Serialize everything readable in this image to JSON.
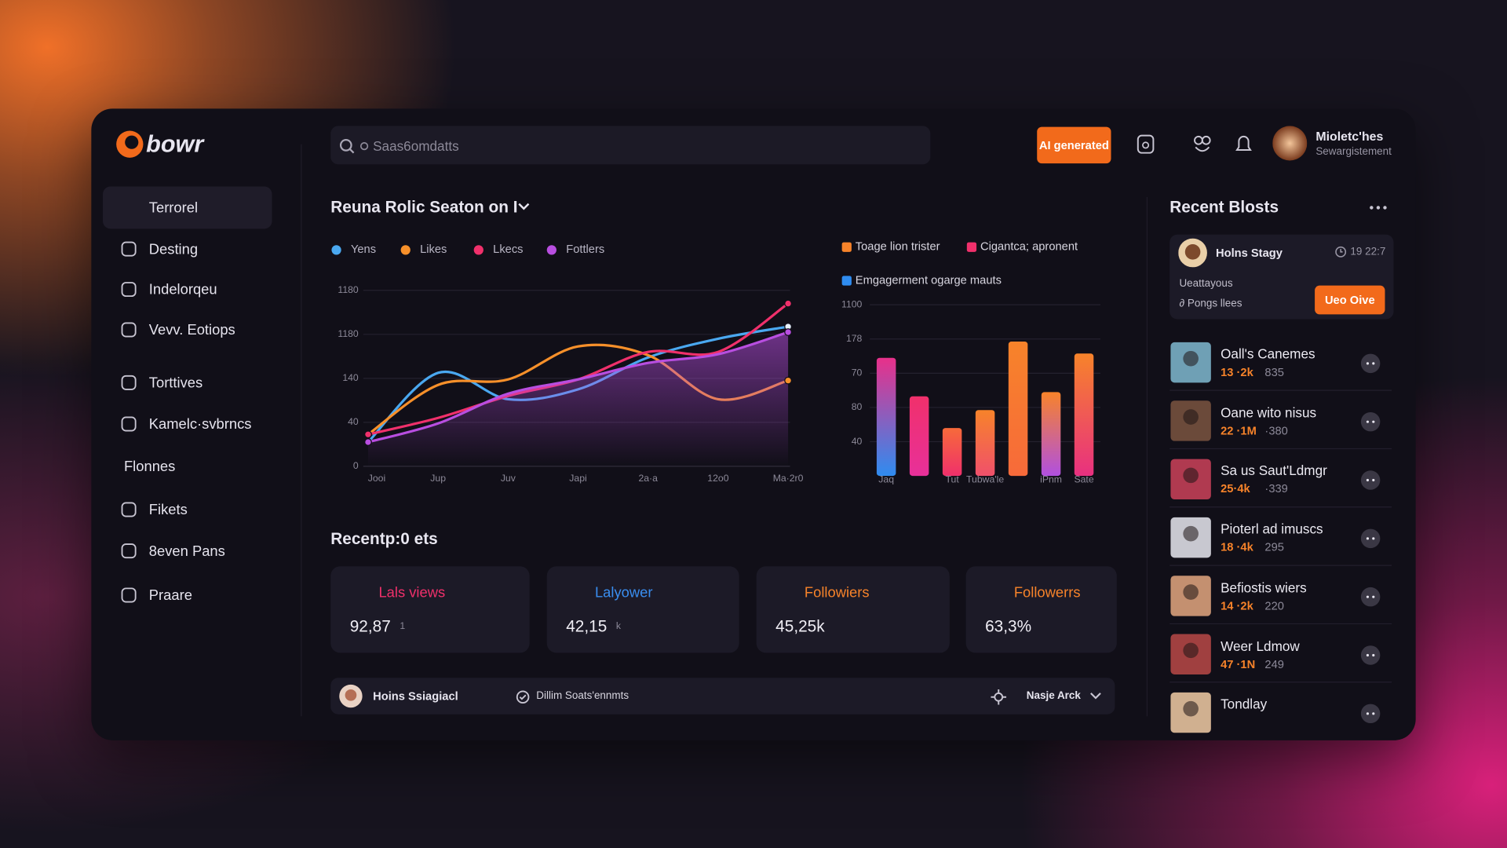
{
  "brand": "bowr",
  "search_placeholder": "Saas6omdatts",
  "ai_button": "AI generated",
  "user": {
    "name": "Mioletc'hes",
    "subtitle": "Sewargistement"
  },
  "nav": [
    "Terrorel",
    "Desting",
    "Indelorqeu",
    "Vevv. Eotiops",
    "Torttives",
    "Kamelc·svbrncs",
    "Flonnes",
    "Fikets",
    "8even Pans",
    "Praare"
  ],
  "chart_data": [
    {
      "type": "line",
      "title": "Reuna Rolic Seaton on I",
      "categories": [
        "Jooi",
        "Jup",
        "Juv",
        "Japi",
        "2a·a",
        "12o0",
        "Ma·2r0"
      ],
      "series": [
        {
          "name": "Yens",
          "color": "#4aa8f0",
          "values": [
            22,
            85,
            61,
            70,
            99,
            116,
            127
          ]
        },
        {
          "name": "Likes",
          "color": "#f7902a",
          "values": [
            29,
            74,
            79,
            109,
            101,
            61,
            78
          ]
        },
        {
          "name": "Lkecs",
          "color": "#f0306b",
          "values": [
            29,
            44,
            64,
            79,
            104,
            104,
            148
          ]
        },
        {
          "name": "Fottlers",
          "color": "#b84ee0",
          "values": [
            22,
            39,
            66,
            79,
            94,
            102,
            122
          ],
          "fill_area": true
        }
      ],
      "ylim": [
        0,
        160
      ],
      "yticks": [
        0,
        40,
        {
          "value": 80,
          "label": "140"
        },
        {
          "value": 120,
          "label": "1180"
        },
        {
          "value": 160,
          "label": "1180"
        }
      ],
      "grid": true
    },
    {
      "type": "bar",
      "legend": [
        {
          "name": "Toage lion trister",
          "color": "#f7832a"
        },
        {
          "name": "Cigantca; apronent",
          "color": "#f0306b"
        },
        {
          "name": "Emgagerment ogarge mauts",
          "color": "#2f8cf0"
        }
      ],
      "categories": [
        "Jaq",
        null,
        "Tut",
        "Tubwa'le",
        null,
        "iPnm",
        "Sate"
      ],
      "values": [
        138,
        93,
        56,
        77,
        157,
        98,
        143
      ],
      "bar_colors": [
        [
          "#e8308a",
          "#2f8cf0"
        ],
        [
          "#f0306b",
          "#e8309a"
        ],
        [
          "#f76a3a",
          "#f0306b"
        ],
        [
          "#f7832a",
          "#f0506b"
        ],
        [
          "#f7832a",
          "#f76a3a"
        ],
        [
          "#f7832a",
          "#b050e0"
        ],
        [
          "#f7832a",
          "#e83080"
        ]
      ],
      "ylim": [
        0,
        200
      ],
      "yticks": [
        40,
        80,
        {
          "value": 120,
          "label": "70"
        },
        {
          "value": 160,
          "label": "178"
        },
        {
          "value": 200,
          "label": "1100"
        }
      ],
      "grid": true
    }
  ],
  "section_title": "Recentp:0 ets",
  "stats": [
    {
      "label": "Lals views",
      "value": "92,87",
      "unit": "1",
      "color": "#f0306b"
    },
    {
      "label": "Lalyower",
      "value": "42,15",
      "unit": "k",
      "color": "#3a8ef0"
    },
    {
      "label": "Followiers",
      "value": "45,25k",
      "color": "#f7832a"
    },
    {
      "label": "Followerrs",
      "value": "63,3%",
      "color": "#f7832a"
    }
  ],
  "footer_bar": {
    "name": "Hoins Ssiagiacl",
    "status": "Dillim Soats'ennmts",
    "action": "Nasje Arck"
  },
  "recent_posts": {
    "title": "Recent Blosts",
    "featured": {
      "name": "Holns Stagy",
      "time": "19 22:7",
      "line1": "Ueattayous",
      "line2": "Pongs llees",
      "button": "Ueo Oive"
    },
    "items": [
      {
        "title": "Oall's Canemes",
        "stat": "13 ·2k",
        "count": "835"
      },
      {
        "title": "Oane wito nisus",
        "stat": "22 ·1M",
        "count": "·380"
      },
      {
        "title": "Sa us Saut'Ldmgr",
        "stat": "25·4k",
        "count": "·339"
      },
      {
        "title": "Pioterl ad imuscs",
        "stat": "18 ·4k",
        "count": "295"
      },
      {
        "title": "Befiostis wiers",
        "stat": "14 ·2k",
        "count": "220"
      },
      {
        "title": "Weer Ldmow",
        "stat": "47 ·1N",
        "count": "249"
      },
      {
        "title": "Tondlay"
      }
    ]
  }
}
